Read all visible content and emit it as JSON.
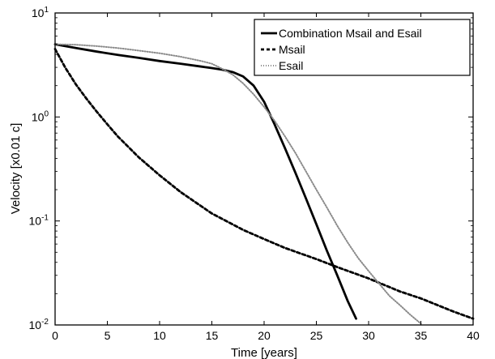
{
  "chart_data": {
    "type": "line",
    "xlabel": "Time [years]",
    "ylabel": "Velocity [x0.01 c]",
    "xlim": [
      0,
      40
    ],
    "ylim": [
      0.01,
      10
    ],
    "yscale": "log",
    "grid": false,
    "legend_position": "top-right",
    "x_ticks": [
      "0",
      "5",
      "10",
      "15",
      "20",
      "25",
      "30",
      "35",
      "40"
    ],
    "y_ticks": [
      {
        "base": "10",
        "exp": "-2"
      },
      {
        "base": "10",
        "exp": "-1"
      },
      {
        "base": "10",
        "exp": "0"
      },
      {
        "base": "10",
        "exp": "1"
      }
    ],
    "series": [
      {
        "name": "Combination Msail and Esail",
        "style": "solid",
        "color": "#000000",
        "points": [
          [
            0,
            5.0
          ],
          [
            2,
            4.6
          ],
          [
            4,
            4.25
          ],
          [
            6,
            3.95
          ],
          [
            8,
            3.7
          ],
          [
            10,
            3.45
          ],
          [
            12,
            3.25
          ],
          [
            14,
            3.05
          ],
          [
            15,
            2.95
          ],
          [
            16,
            2.85
          ],
          [
            17,
            2.7
          ],
          [
            18,
            2.45
          ],
          [
            19,
            2.0
          ],
          [
            20,
            1.4
          ],
          [
            21,
            0.85
          ],
          [
            22,
            0.5
          ],
          [
            23,
            0.29
          ],
          [
            24,
            0.165
          ],
          [
            25,
            0.093
          ],
          [
            26,
            0.052
          ],
          [
            27,
            0.03
          ],
          [
            28,
            0.017
          ],
          [
            28.8,
            0.0115
          ]
        ]
      },
      {
        "name": "Msail",
        "style": "dashed",
        "color": "#000000",
        "points": [
          [
            0,
            4.5
          ],
          [
            1,
            2.95
          ],
          [
            2,
            2.05
          ],
          [
            3,
            1.5
          ],
          [
            4,
            1.12
          ],
          [
            5,
            0.85
          ],
          [
            6,
            0.65
          ],
          [
            8,
            0.41
          ],
          [
            10,
            0.275
          ],
          [
            12,
            0.19
          ],
          [
            15,
            0.118
          ],
          [
            18,
            0.082
          ],
          [
            20,
            0.067
          ],
          [
            22,
            0.055
          ],
          [
            25,
            0.043
          ],
          [
            27,
            0.036
          ],
          [
            30,
            0.028
          ],
          [
            33,
            0.021
          ],
          [
            35,
            0.018
          ],
          [
            38,
            0.0136
          ],
          [
            40,
            0.0115
          ]
        ]
      },
      {
        "name": "Esail",
        "style": "dotted",
        "color": "#8a8a8a",
        "points": [
          [
            0,
            5.0
          ],
          [
            2,
            4.95
          ],
          [
            4,
            4.8
          ],
          [
            6,
            4.6
          ],
          [
            8,
            4.35
          ],
          [
            10,
            4.1
          ],
          [
            12,
            3.8
          ],
          [
            14,
            3.45
          ],
          [
            15,
            3.25
          ],
          [
            16,
            2.9
          ],
          [
            17,
            2.55
          ],
          [
            18,
            2.1
          ],
          [
            19,
            1.65
          ],
          [
            20,
            1.25
          ],
          [
            21,
            0.92
          ],
          [
            22,
            0.65
          ],
          [
            23,
            0.45
          ],
          [
            24,
            0.3
          ],
          [
            25,
            0.2
          ],
          [
            26,
            0.135
          ],
          [
            27,
            0.09
          ],
          [
            28,
            0.062
          ],
          [
            29,
            0.044
          ],
          [
            30,
            0.033
          ],
          [
            31,
            0.025
          ],
          [
            32,
            0.019
          ],
          [
            33,
            0.0155
          ],
          [
            34,
            0.0125
          ],
          [
            35,
            0.0103
          ]
        ]
      }
    ]
  }
}
